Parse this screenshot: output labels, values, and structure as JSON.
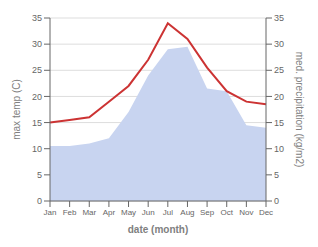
{
  "chart_data": {
    "type": "line",
    "categories": [
      "Jan",
      "Feb",
      "Mar",
      "Apr",
      "May",
      "Jun",
      "Jul",
      "Aug",
      "Sep",
      "Oct",
      "Nov",
      "Dec"
    ],
    "series": [
      {
        "type": "area",
        "color": "#c8d4f0",
        "axis": "y2",
        "values": [
          10.5,
          10.5,
          11.0,
          12.0,
          17.0,
          24.0,
          29.0,
          29.5,
          21.5,
          21.0,
          14.5,
          14.0
        ]
      },
      {
        "type": "line",
        "color": "#cc3333",
        "values": [
          15.0,
          15.5,
          16.0,
          19.0,
          22.0,
          27.0,
          34.0,
          31.0,
          25.5,
          21.0,
          19.0,
          18.5
        ]
      }
    ],
    "xlabel": "date (month)",
    "ylabel": "max temp (C)",
    "y2label": "med. precipitation (kg/m2)",
    "ylim": [
      0,
      35
    ],
    "yticks": [
      0,
      5,
      10,
      15,
      20,
      25,
      30,
      35
    ],
    "y2lim": [
      0,
      35
    ],
    "y2ticks": [
      0,
      5,
      10,
      15,
      20,
      25,
      30,
      35
    ],
    "grid": true
  }
}
